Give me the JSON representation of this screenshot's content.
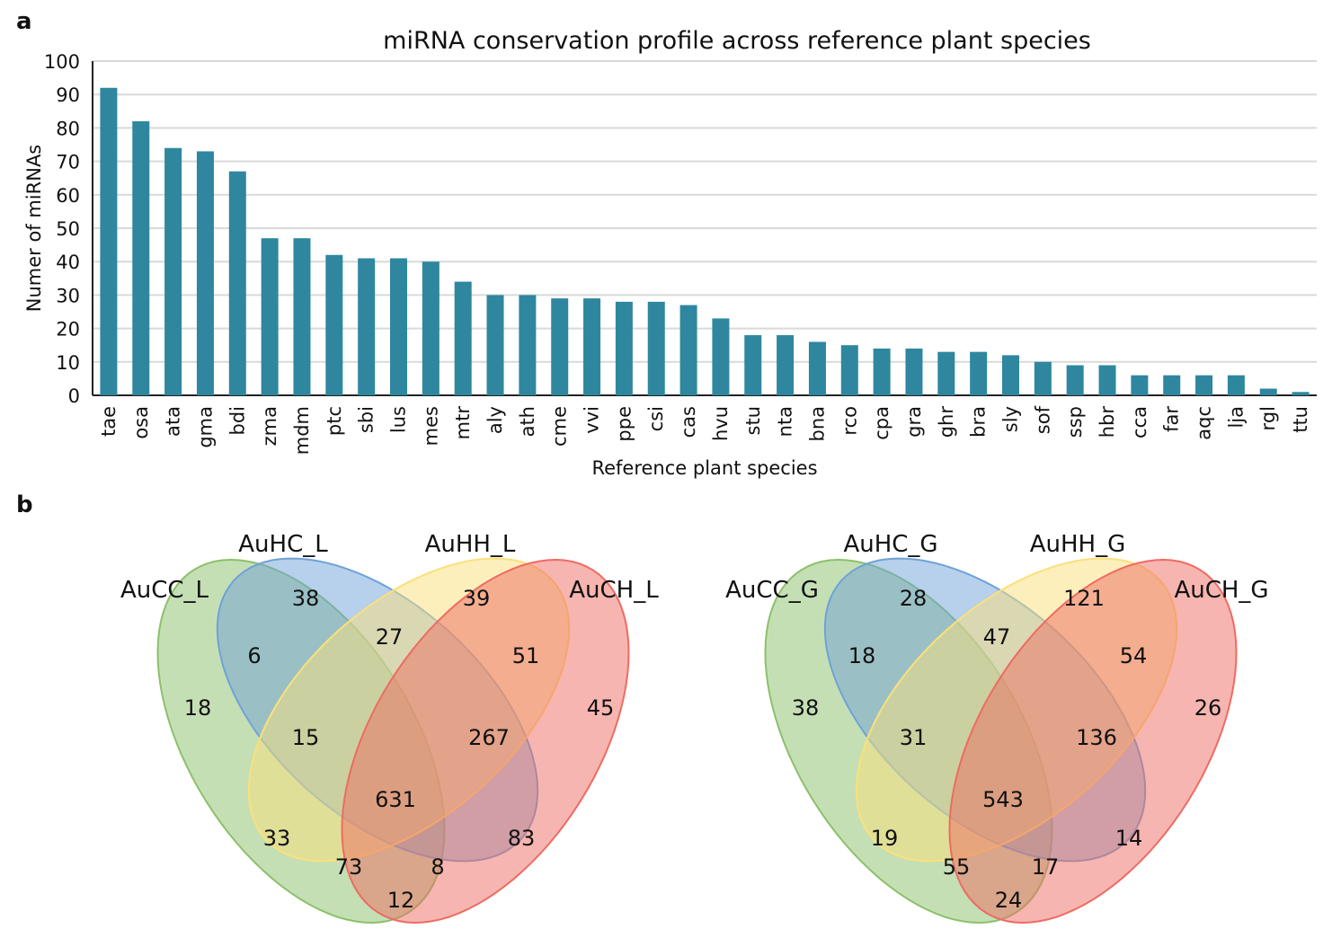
{
  "panel_labels": {
    "a": "a",
    "b": "b"
  },
  "chart_data": [
    {
      "type": "bar",
      "title": "miRNA conservation profile across reference plant species",
      "xlabel": "Reference plant species",
      "ylabel": "Numer of miRNAs",
      "ylim": [
        0,
        100
      ],
      "yticks": [
        "0",
        "10",
        "20",
        "30",
        "40",
        "50",
        "60",
        "70",
        "80",
        "90",
        "100"
      ],
      "grid": true,
      "color": "#2e879e",
      "categories": [
        "tae",
        "osa",
        "ata",
        "gma",
        "bdi",
        "zma",
        "mdm",
        "ptc",
        "sbi",
        "lus",
        "mes",
        "mtr",
        "aly",
        "ath",
        "cme",
        "vvi",
        "ppe",
        "csi",
        "cas",
        "hvu",
        "stu",
        "nta",
        "bna",
        "rco",
        "cpa",
        "gra",
        "ghr",
        "bra",
        "sly",
        "sof",
        "ssp",
        "hbr",
        "cca",
        "far",
        "aqc",
        "lja",
        "rgl",
        "ttu"
      ],
      "values": [
        92,
        82,
        74,
        73,
        67,
        47,
        47,
        42,
        41,
        41,
        40,
        34,
        30,
        30,
        29,
        29,
        28,
        28,
        27,
        23,
        18,
        18,
        16,
        15,
        14,
        14,
        13,
        13,
        12,
        10,
        9,
        9,
        6,
        6,
        6,
        6,
        2,
        1
      ]
    },
    {
      "type": "venn",
      "sets": [
        "AuCC_L",
        "AuHC_L",
        "AuHH_L",
        "AuCH_L"
      ],
      "colors": [
        "#8cc06b",
        "#6fa2d8",
        "#fbe07a",
        "#ee6b62"
      ],
      "regions": [
        "18",
        "38",
        "39",
        "45",
        "6",
        "27",
        "51",
        "15",
        "267",
        "631",
        "33",
        "83",
        "73",
        "8",
        "12"
      ]
    },
    {
      "type": "venn",
      "sets": [
        "AuCC_G",
        "AuHC_G",
        "AuHH_G",
        "AuCH_G"
      ],
      "colors": [
        "#8cc06b",
        "#6fa2d8",
        "#fbe07a",
        "#ee6b62"
      ],
      "regions": [
        "38",
        "28",
        "121",
        "26",
        "18",
        "47",
        "54",
        "31",
        "136",
        "543",
        "19",
        "14",
        "55",
        "17",
        "24"
      ]
    }
  ]
}
